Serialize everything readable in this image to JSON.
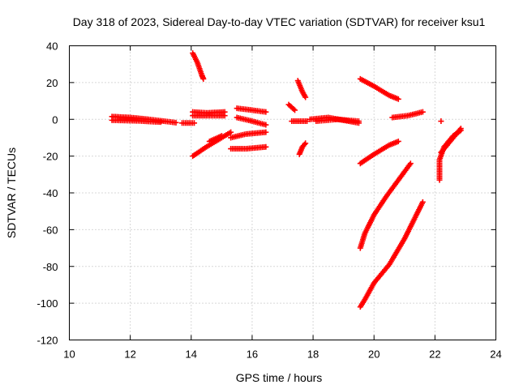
{
  "chart_data": {
    "type": "scatter",
    "title": "Day 318 of 2023, Sidereal Day-to-day VTEC variation (SDTVAR) for receiver ksu1",
    "xlabel": "GPS time / hours",
    "ylabel": "SDTVAR / TECUs",
    "xlim": [
      10,
      24
    ],
    "ylim": [
      -120,
      40
    ],
    "xticks": [
      10,
      12,
      14,
      16,
      18,
      20,
      22,
      24
    ],
    "yticks": [
      40,
      20,
      0,
      -20,
      -40,
      -60,
      -80,
      -100,
      -120
    ],
    "grid": true,
    "legend": "none",
    "marker": "+",
    "color": "#ff0000",
    "series": [
      {
        "segments": [
          [
            [
              11.4,
              1.5
            ],
            [
              12.0,
              1.0
            ],
            [
              12.6,
              0.0
            ],
            [
              13.1,
              -1.0
            ],
            [
              13.5,
              -1.8
            ]
          ],
          [
            [
              11.4,
              -0.5
            ],
            [
              12.2,
              -0.8
            ],
            [
              13.0,
              -1.5
            ]
          ],
          [
            [
              13.7,
              -2.0
            ],
            [
              14.1,
              -2.0
            ]
          ]
        ]
      },
      {
        "segments": [
          [
            [
              14.05,
              36
            ],
            [
              14.2,
              31
            ],
            [
              14.35,
              24
            ],
            [
              14.4,
              22
            ]
          ],
          [
            [
              14.05,
              4
            ],
            [
              14.5,
              3.5
            ],
            [
              15.1,
              4
            ]
          ],
          [
            [
              14.05,
              2
            ],
            [
              14.6,
              2
            ],
            [
              15.1,
              2
            ]
          ],
          [
            [
              14.05,
              -20
            ],
            [
              14.5,
              -15
            ],
            [
              15.0,
              -10
            ],
            [
              15.3,
              -7
            ]
          ],
          [
            [
              14.6,
              -12
            ],
            [
              15.0,
              -9
            ]
          ]
        ]
      },
      {
        "segments": [
          [
            [
              15.5,
              6
            ],
            [
              16.0,
              5
            ],
            [
              16.45,
              4
            ]
          ],
          [
            [
              15.5,
              1
            ],
            [
              16.0,
              -1
            ],
            [
              16.45,
              -3
            ]
          ],
          [
            [
              15.3,
              -10
            ],
            [
              15.8,
              -8
            ],
            [
              16.45,
              -7
            ]
          ],
          [
            [
              15.3,
              -16
            ],
            [
              15.8,
              -16
            ],
            [
              16.45,
              -15
            ]
          ]
        ]
      },
      {
        "segments": [
          [
            [
              17.2,
              8
            ],
            [
              17.4,
              5
            ]
          ],
          [
            [
              17.5,
              21
            ],
            [
              17.65,
              15
            ],
            [
              17.75,
              12
            ]
          ],
          [
            [
              17.3,
              -1
            ],
            [
              17.8,
              -1
            ]
          ],
          [
            [
              17.55,
              -19
            ],
            [
              17.65,
              -15
            ],
            [
              17.75,
              -13
            ]
          ]
        ]
      },
      {
        "segments": [
          [
            [
              17.9,
              0
            ],
            [
              18.5,
              1
            ],
            [
              19.0,
              -0.5
            ],
            [
              19.5,
              -2
            ]
          ],
          [
            [
              18.1,
              -1
            ],
            [
              18.8,
              0
            ],
            [
              19.5,
              -1
            ]
          ]
        ]
      },
      {
        "segments": [
          [
            [
              19.55,
              22
            ],
            [
              20.0,
              18
            ],
            [
              20.5,
              13
            ],
            [
              20.8,
              11
            ]
          ],
          [
            [
              20.6,
              1
            ],
            [
              21.1,
              2
            ],
            [
              21.6,
              4
            ]
          ],
          [
            [
              19.55,
              -24
            ],
            [
              20.0,
              -19
            ],
            [
              20.5,
              -14
            ],
            [
              20.8,
              -12
            ]
          ]
        ]
      },
      {
        "segments": [
          [
            [
              19.55,
              -70
            ],
            [
              19.7,
              -62
            ],
            [
              20.0,
              -52
            ],
            [
              20.4,
              -42
            ],
            [
              20.8,
              -33
            ],
            [
              21.2,
              -24
            ]
          ],
          [
            [
              19.55,
              -102
            ],
            [
              19.7,
              -98
            ],
            [
              20.0,
              -89
            ],
            [
              20.5,
              -79
            ],
            [
              21.0,
              -65
            ],
            [
              21.6,
              -45
            ]
          ]
        ]
      },
      {
        "segments": [
          [
            [
              22.2,
              -1
            ]
          ],
          [
            [
              22.15,
              -33
            ],
            [
              22.15,
              -22
            ],
            [
              22.3,
              -15
            ],
            [
              22.6,
              -9
            ],
            [
              22.85,
              -6
            ]
          ],
          [
            [
              22.2,
              -18
            ],
            [
              22.5,
              -12
            ],
            [
              22.85,
              -5
            ]
          ]
        ]
      }
    ]
  }
}
